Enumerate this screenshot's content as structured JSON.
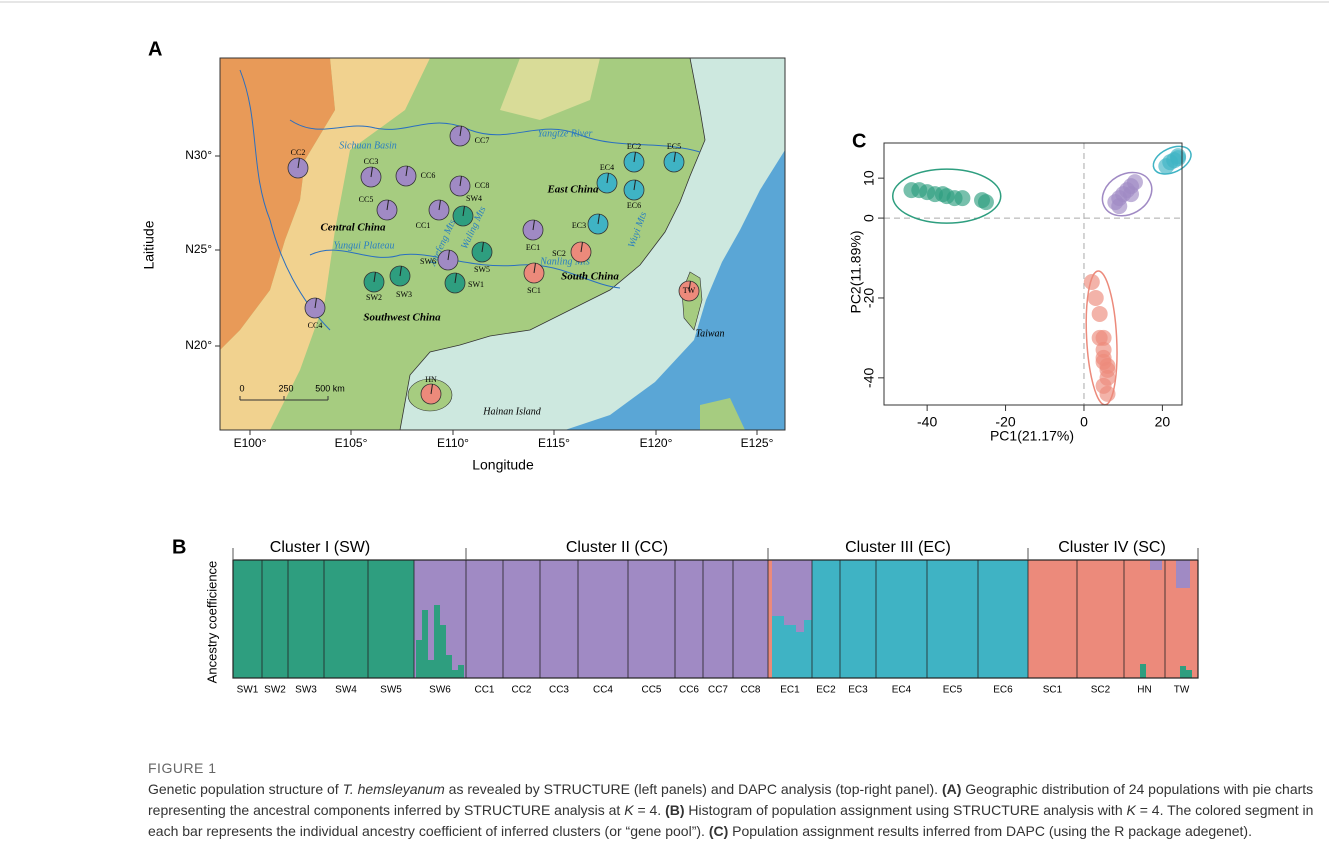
{
  "map": {
    "label": "A",
    "x_label": "Longitude",
    "y_label": "Laitiude",
    "xticks": [
      "E100°",
      "E105°",
      "E110°",
      "E115°",
      "E120°",
      "E125°"
    ],
    "yticks": [
      "N20°",
      "N25°",
      "N30°"
    ],
    "regions": [
      "Sichuan Basin",
      "Yangtze River",
      "East China",
      "Central China",
      "Yungui Plateau",
      "Southwest China",
      "South China",
      "Nanling Mts",
      "Wuyi Mts",
      "Taiwan",
      "Hainan Island",
      "Wuling Mts",
      "Xuefeng Mts"
    ],
    "scale": [
      "0",
      "250",
      "500 km"
    ],
    "populations": [
      "CC2",
      "CC3",
      "CC6",
      "CC7",
      "CC8",
      "SW4",
      "CC5",
      "CC1",
      "SW6",
      "SW5",
      "SW1",
      "SW2",
      "SW3",
      "CC4",
      "EC1",
      "SC2",
      "SC1",
      "EC3",
      "EC4",
      "EC2",
      "EC6",
      "EC5",
      "TW",
      "HN"
    ]
  },
  "structure": {
    "label": "B",
    "y_label": "Ancestry coefficience",
    "clusters": [
      "Cluster I (SW)",
      "Cluster II (CC)",
      "Cluster III (EC)",
      "Cluster IV (SC)"
    ],
    "populations": [
      "SW1",
      "SW2",
      "SW3",
      "SW4",
      "SW5",
      "SW6",
      "CC1",
      "CC2",
      "CC3",
      "CC4",
      "CC5",
      "CC6",
      "CC7",
      "CC8",
      "EC1",
      "EC2",
      "EC3",
      "EC4",
      "EC5",
      "EC6",
      "SC1",
      "SC2",
      "HN",
      "TW"
    ]
  },
  "chart_data": {
    "type": "scatter",
    "panel_label": "C",
    "x_label": "PC1(21.17%)",
    "y_label": "PC2(11.89%)",
    "xlim": [
      -51,
      25
    ],
    "ylim": [
      -46.8,
      18.8
    ],
    "xticks": [
      -40,
      -20,
      0,
      20
    ],
    "yticks": [
      -40,
      -20,
      0,
      10
    ],
    "series": [
      {
        "color": "#2e9e7f",
        "x": [
          -44,
          -42,
          -40,
          -38,
          -36,
          -35,
          -33,
          -31,
          -26,
          -25
        ],
        "values": [
          7,
          7,
          6.5,
          6,
          6,
          5.5,
          5,
          5,
          4.5,
          4
        ]
      },
      {
        "color": "#a08ac4",
        "x": [
          8,
          9,
          9,
          10,
          11,
          12,
          12,
          13
        ],
        "values": [
          4,
          5,
          3,
          6,
          7,
          8,
          6,
          9
        ]
      },
      {
        "color": "#3fb3c4",
        "x": [
          21,
          22,
          23,
          24,
          24
        ],
        "values": [
          13,
          14,
          14.5,
          15,
          15.5
        ]
      },
      {
        "color": "#ec8a7b",
        "x": [
          2,
          3,
          4,
          4,
          5,
          5,
          5,
          5,
          6,
          6,
          5,
          6,
          6
        ],
        "values": [
          -16,
          -20,
          -24,
          -30,
          -30,
          -33,
          -35,
          -36,
          -37,
          -38,
          -42,
          -40,
          -44
        ]
      }
    ]
  },
  "caption": {
    "label": "FIGURE 1",
    "parts": [
      "Genetic population structure of ",
      "T. hemsleyanum",
      " as revealed by STRUCTURE (left panels) and DAPC analysis (top-right panel). ",
      "(A)",
      " Geographic distribution of 24 populations with pie charts representing the ancestral components inferred by STRUCTURE analysis at ",
      "K",
      " = 4. ",
      "(B)",
      " Histogram of population assignment using STRUCTURE analysis with ",
      "K",
      " = 4. The colored segment in each bar represents the individual ancestry coefficient of inferred clusters (or “gene pool”). ",
      "(C)",
      " Population assignment results inferred from DAPC (using the R package adegenet)."
    ]
  }
}
